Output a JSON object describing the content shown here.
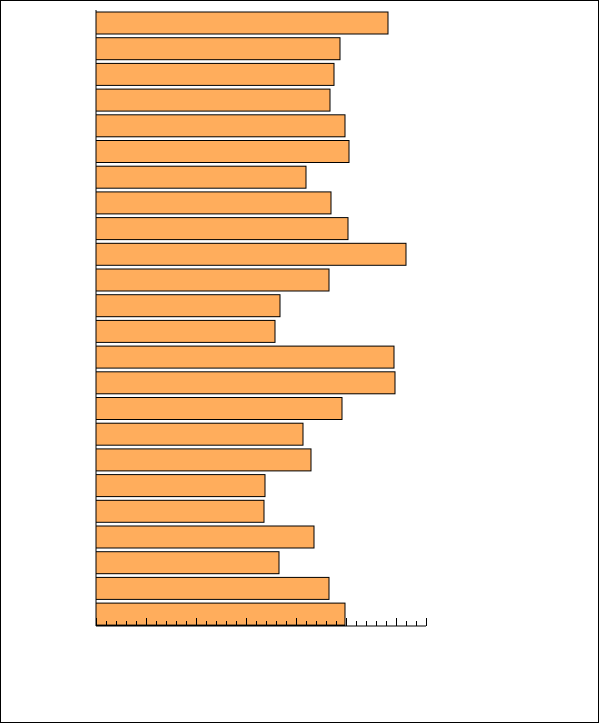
{
  "chart_data": {
    "type": "bar",
    "orientation": "horizontal",
    "title": "",
    "xlabel": "",
    "ylabel": "",
    "categories": [
      "",
      "",
      "",
      "",
      "",
      "",
      "",
      "",
      "",
      "",
      "",
      "",
      "",
      "",
      "",
      "",
      "",
      "",
      "",
      "",
      "",
      "",
      "",
      ""
    ],
    "values": [
      292,
      244,
      238,
      234,
      249,
      253,
      210,
      235,
      252,
      310,
      233,
      184,
      179,
      298,
      299,
      246,
      207,
      215,
      169,
      168,
      218,
      183,
      233,
      249
    ],
    "xlim": [
      0,
      330
    ],
    "grid": false,
    "legend": "none",
    "bar_color": "#ffad5c"
  }
}
